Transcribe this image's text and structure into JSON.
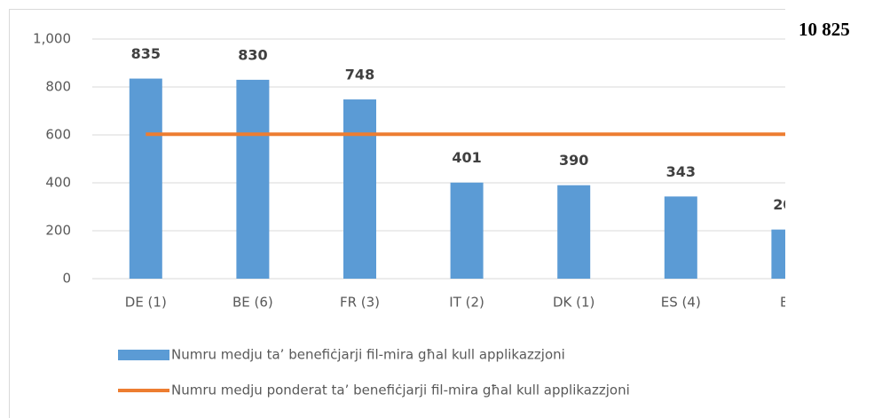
{
  "chart_data": {
    "type": "bar",
    "categories": [
      "DE (1)",
      "BE (6)",
      "FR (3)",
      "IT (2)",
      "DK (1)",
      "ES (4)",
      "EL"
    ],
    "series": [
      {
        "name": "Numru medju ta’ benefiċjarji fil-mira għal kull applikazzjoni",
        "type": "bar",
        "color": "#5b9bd5",
        "values": [
          835,
          830,
          748,
          401,
          390,
          343,
          205
        ],
        "data_labels": true
      },
      {
        "name": "Numru medju ponderat ta’ benefiċjarji fil-mira għal kull applikazzjoni",
        "type": "line",
        "color": "#ed7d31",
        "values": [
          603,
          603,
          603,
          603,
          603,
          603,
          603
        ]
      }
    ],
    "ylim": [
      0,
      1000
    ],
    "yticks": [
      0,
      200,
      400,
      600,
      800,
      {
        "value": 1000,
        "label": "1,000"
      }
    ],
    "grid": true,
    "legend": "bottom",
    "annotation": "10 825"
  }
}
